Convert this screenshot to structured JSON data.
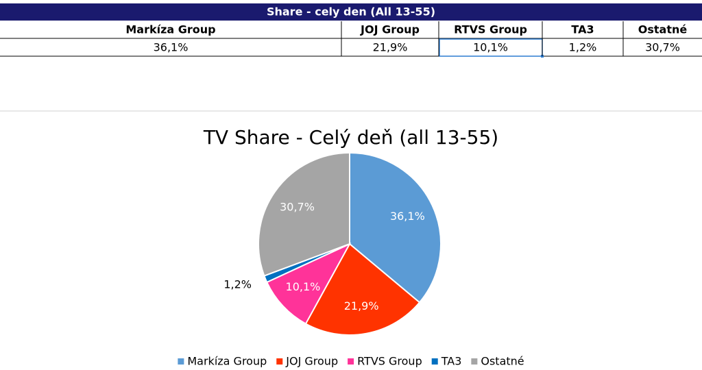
{
  "table": {
    "title": "Share - cely den (All 13-55)",
    "columns": [
      "Markíza Group",
      "JOJ Group",
      "RTVS Group",
      "TA3",
      "Ostatné"
    ],
    "rows": [
      [
        "36,1%",
        "21,9%",
        "10,1%",
        "1,2%",
        "30,7%"
      ]
    ]
  },
  "chart_data": {
    "type": "pie",
    "title": "TV Share - Celý deň (all 13-55)",
    "categories": [
      "Markíza Group",
      "JOJ Group",
      "RTVS Group",
      "TA3",
      "Ostatné"
    ],
    "values": [
      36.1,
      21.9,
      10.1,
      1.2,
      30.7
    ],
    "value_labels": [
      "36,1%",
      "21,9%",
      "10,1%",
      "1,2%",
      "30,7%"
    ],
    "colors": [
      "#5b9bd5",
      "#ff3300",
      "#ff3399",
      "#0070c0",
      "#a5a5a5"
    ],
    "legend": "bottom"
  }
}
